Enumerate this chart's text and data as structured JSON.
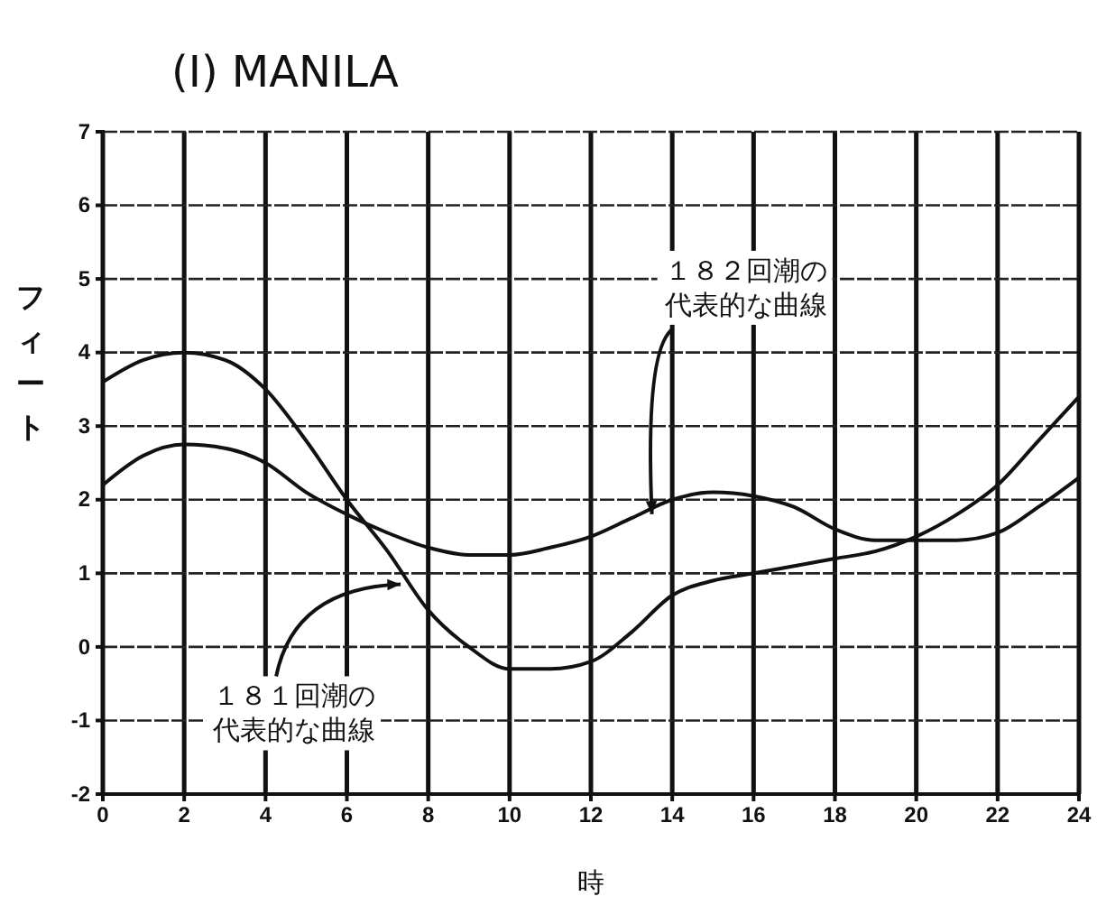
{
  "chart_data": {
    "type": "line",
    "title": "(I) MANILA",
    "xlabel": "時",
    "ylabel": "フィート",
    "x": [
      0,
      1,
      2,
      3,
      4,
      5,
      6,
      7,
      8,
      9,
      10,
      11,
      12,
      13,
      14,
      15,
      16,
      17,
      18,
      19,
      20,
      21,
      22,
      23,
      24
    ],
    "series": [
      {
        "color": "#111111",
        "values": [
          3.6,
          3.9,
          4.0,
          3.9,
          3.5,
          2.8,
          2.0,
          1.3,
          0.5,
          0.0,
          -0.3,
          -0.3,
          -0.2,
          0.2,
          0.7,
          0.9,
          1.0,
          1.1,
          1.2,
          1.3,
          1.5,
          1.8,
          2.2,
          2.8,
          3.4
        ]
      },
      {
        "color": "#111111",
        "values": [
          2.2,
          2.6,
          2.75,
          2.7,
          2.5,
          2.1,
          1.8,
          1.55,
          1.35,
          1.25,
          1.25,
          1.35,
          1.5,
          1.75,
          2.0,
          2.1,
          2.05,
          1.9,
          1.6,
          1.45,
          1.45,
          1.45,
          1.55,
          1.9,
          2.3
        ]
      }
    ],
    "annotations": [
      {
        "text": "１８１回潮の代表的な曲線",
        "x": 7.5,
        "y": 0.9
      },
      {
        "text": "１８２回潮の代表的な曲線",
        "x": 13.5,
        "y": 1.9
      }
    ],
    "xlim": [
      0,
      24
    ],
    "xticks": [
      0,
      2,
      4,
      6,
      8,
      10,
      12,
      14,
      16,
      18,
      20,
      22,
      24
    ],
    "ylim": [
      -2,
      7
    ],
    "yticks": [
      -2,
      -1,
      0,
      1,
      2,
      3,
      4,
      5,
      6,
      7
    ],
    "grid": true,
    "marker": "none",
    "line_style": "solid",
    "legend": false
  }
}
